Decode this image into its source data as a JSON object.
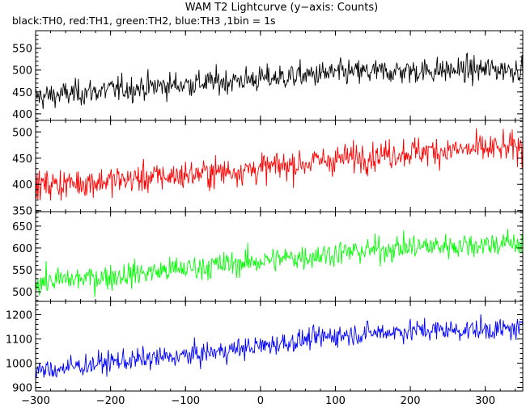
{
  "chart_data": {
    "type": "line",
    "title": "WAM T2 Lightcurve (y−axis: Counts)",
    "subtitle": "black:TH0, red:TH1, green:TH2, blue:TH3 ,1bin = 1s",
    "xlabel": "",
    "ylabel": "",
    "x_range": [
      -300,
      350
    ],
    "x_ticks": [
      "−300",
      "−200",
      "−100",
      "0",
      "100",
      "200",
      "300"
    ],
    "x_step": 1,
    "panels": [
      {
        "name": "TH0",
        "color": "#000000",
        "ylim": [
          385,
          590
        ],
        "y_ticks": [
          "400",
          "450",
          "500",
          "550"
        ],
        "y_tick_values": [
          400,
          450,
          500,
          550
        ],
        "trend": [
          [
            -300,
            438
          ],
          [
            -200,
            455
          ],
          [
            -100,
            468
          ],
          [
            0,
            480
          ],
          [
            100,
            493
          ],
          [
            200,
            498
          ],
          [
            350,
            503
          ]
        ],
        "noise_amplitude": 25
      },
      {
        "name": "TH1",
        "color": "#ff0000",
        "ylim": [
          348,
          522
        ],
        "y_ticks": [
          "350",
          "400",
          "450",
          "500"
        ],
        "y_tick_values": [
          350,
          400,
          450,
          500
        ],
        "trend": [
          [
            -300,
            398
          ],
          [
            -200,
            407
          ],
          [
            -100,
            418
          ],
          [
            0,
            430
          ],
          [
            100,
            448
          ],
          [
            200,
            462
          ],
          [
            350,
            470
          ]
        ],
        "noise_amplitude": 24
      },
      {
        "name": "TH2",
        "color": "#00ff00",
        "ylim": [
          478,
          683
        ],
        "y_ticks": [
          "500",
          "550",
          "600",
          "650"
        ],
        "y_tick_values": [
          500,
          550,
          600,
          650
        ],
        "trend": [
          [
            -300,
            522
          ],
          [
            -200,
            535
          ],
          [
            -100,
            553
          ],
          [
            0,
            570
          ],
          [
            100,
            588
          ],
          [
            200,
            602
          ],
          [
            350,
            612
          ]
        ],
        "noise_amplitude": 25
      },
      {
        "name": "TH3",
        "color": "#0000ff",
        "ylim": [
          885,
          1255
        ],
        "y_ticks": [
          "900",
          "1000",
          "1100",
          "1200"
        ],
        "y_tick_values": [
          900,
          1000,
          1100,
          1200
        ],
        "trend": [
          [
            -300,
            965
          ],
          [
            -200,
            1005
          ],
          [
            -100,
            1030
          ],
          [
            0,
            1070
          ],
          [
            100,
            1115
          ],
          [
            200,
            1135
          ],
          [
            350,
            1140
          ]
        ],
        "noise_amplitude": 38
      }
    ]
  }
}
